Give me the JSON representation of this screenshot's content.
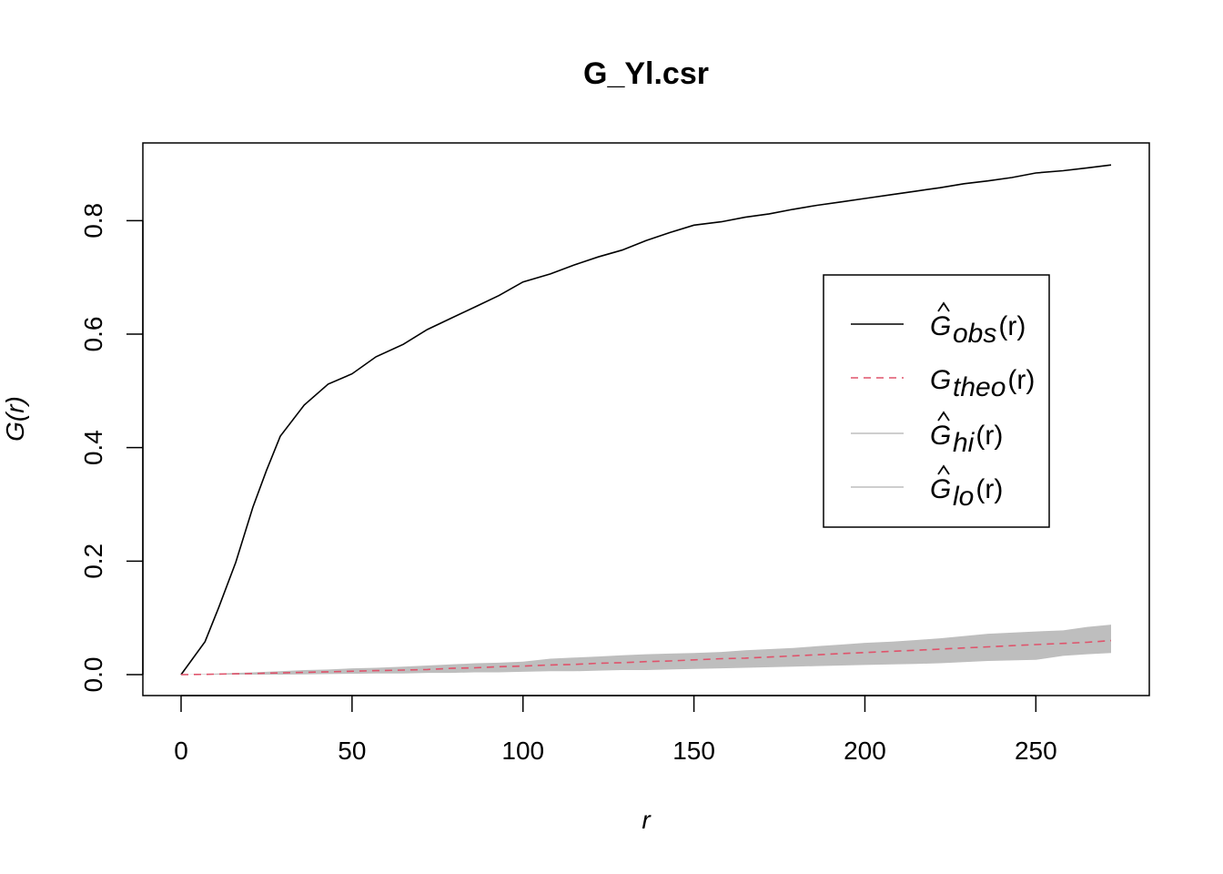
{
  "chart_data": {
    "type": "line",
    "title": "G_Yl.csr",
    "xlabel": "r",
    "ylabel": "G(r)",
    "xlim": [
      0,
      272
    ],
    "ylim": [
      0,
      0.9
    ],
    "xticks": [
      "0",
      "50",
      "100",
      "150",
      "200",
      "250"
    ],
    "yticks": [
      "0.0",
      "0.2",
      "0.4",
      "0.6",
      "0.8"
    ],
    "legend_position": "right",
    "x": [
      0,
      7,
      11,
      16,
      21,
      25,
      29,
      36,
      43,
      50,
      57,
      65,
      72,
      79,
      86,
      93,
      100,
      108,
      115,
      122,
      129,
      136,
      143,
      150,
      158,
      165,
      172,
      179,
      186,
      193,
      200,
      208,
      215,
      222,
      229,
      236,
      243,
      250,
      258,
      265,
      272
    ],
    "series": [
      {
        "name": "obs",
        "color": "#000000",
        "dash": "solid",
        "values": [
          0,
          0.058,
          0.118,
          0.198,
          0.295,
          0.36,
          0.42,
          0.475,
          0.512,
          0.53,
          0.56,
          0.582,
          0.608,
          0.628,
          0.648,
          0.668,
          0.692,
          0.706,
          0.722,
          0.736,
          0.748,
          0.765,
          0.779,
          0.792,
          0.798,
          0.806,
          0.812,
          0.82,
          0.827,
          0.833,
          0.839,
          0.846,
          0.852,
          0.858,
          0.865,
          0.87,
          0.876,
          0.884,
          0.888,
          0.893,
          0.898
        ]
      },
      {
        "name": "theo",
        "color": "#DF536B",
        "dash": "dashed",
        "values": [
          0,
          0.0005,
          0.001,
          0.0015,
          0.002,
          0.0025,
          0.003,
          0.004,
          0.005,
          0.006,
          0.007,
          0.008,
          0.009,
          0.011,
          0.012,
          0.014,
          0.015,
          0.017,
          0.018,
          0.02,
          0.021,
          0.023,
          0.024,
          0.026,
          0.028,
          0.029,
          0.031,
          0.033,
          0.035,
          0.037,
          0.039,
          0.041,
          0.043,
          0.045,
          0.047,
          0.049,
          0.051,
          0.053,
          0.055,
          0.057,
          0.06
        ]
      },
      {
        "name": "hi",
        "color": "#BEBEBE",
        "dash": "solid",
        "values": [
          0,
          0.001,
          0.002,
          0.003,
          0.004,
          0.005,
          0.006,
          0.008,
          0.009,
          0.011,
          0.012,
          0.014,
          0.016,
          0.018,
          0.02,
          0.021,
          0.023,
          0.028,
          0.03,
          0.032,
          0.034,
          0.036,
          0.037,
          0.038,
          0.04,
          0.043,
          0.045,
          0.047,
          0.05,
          0.053,
          0.056,
          0.058,
          0.061,
          0.064,
          0.068,
          0.072,
          0.074,
          0.076,
          0.078,
          0.084,
          0.088
        ]
      },
      {
        "name": "lo",
        "color": "#BEBEBE",
        "dash": "solid",
        "values": [
          0,
          0,
          0,
          0,
          0,
          0,
          0,
          0.0005,
          0.001,
          0.0015,
          0.002,
          0.002,
          0.003,
          0.003,
          0.004,
          0.004,
          0.005,
          0.006,
          0.006,
          0.007,
          0.008,
          0.008,
          0.009,
          0.01,
          0.011,
          0.012,
          0.013,
          0.014,
          0.015,
          0.016,
          0.017,
          0.018,
          0.019,
          0.02,
          0.022,
          0.024,
          0.025,
          0.026,
          0.033,
          0.036,
          0.038
        ]
      }
    ],
    "legend": [
      {
        "key": "obs",
        "base": "G",
        "hat": true,
        "sub": "obs",
        "arg": "(r)",
        "color": "#000000",
        "dash": "solid"
      },
      {
        "key": "theo",
        "base": "G",
        "hat": false,
        "sub": "theo",
        "arg": "(r)",
        "color": "#DF536B",
        "dash": "dashed"
      },
      {
        "key": "hi",
        "base": "G",
        "hat": true,
        "sub": "hi",
        "arg": "(r)",
        "color": "#BEBEBE",
        "dash": "solid"
      },
      {
        "key": "lo",
        "base": "G",
        "hat": true,
        "sub": "lo",
        "arg": "(r)",
        "color": "#BEBEBE",
        "dash": "solid"
      }
    ]
  }
}
